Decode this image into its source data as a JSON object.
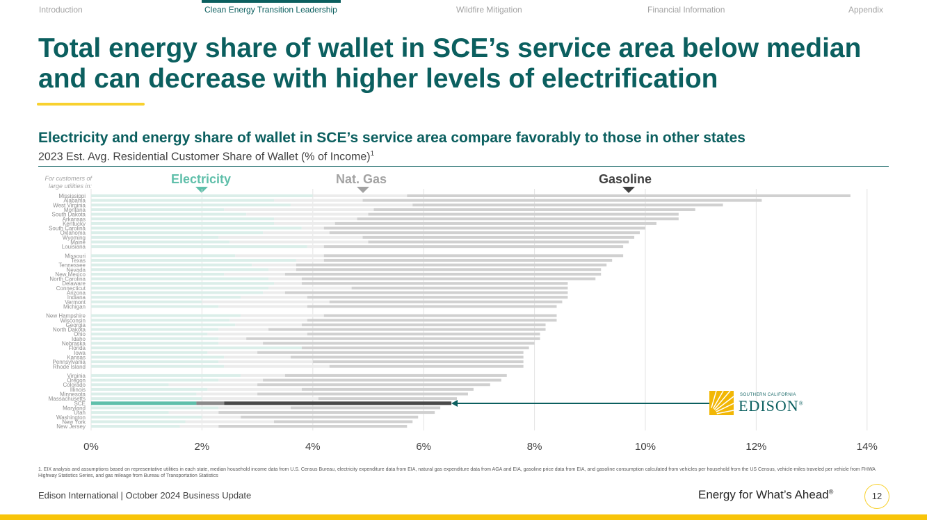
{
  "nav": {
    "items": [
      {
        "label": "Introduction",
        "active": false
      },
      {
        "label": "Clean Energy Transition Leadership",
        "active": true
      },
      {
        "label": "Wildfire Mitigation",
        "active": false
      },
      {
        "label": "Financial Information",
        "active": false
      },
      {
        "label": "Appendix",
        "active": false
      }
    ]
  },
  "title": "Total energy share of wallet in SCE’s service area below median and can decrease with higher levels of electrification",
  "subtitle": "Electricity and energy share of wallet in SCE’s service area compare favorably to those in other states",
  "subsub": "2023 Est. Avg. Residential Customer Share of Wallet (% of Income)",
  "subsub_footnote_ref": "1",
  "customers_note": "For customers of large utilities in:",
  "colors": {
    "accent": "#0b5f5f",
    "yellow": "#f8d12e",
    "electricity": "#dbeee9",
    "gas": "#ececec",
    "gasoline": "#d0d0d0",
    "sce_electricity": "#5fbfaa",
    "sce_gas": "#8a8a8a",
    "sce_gasoline": "#4a4a4a"
  },
  "chart_data": {
    "type": "bar",
    "orientation": "horizontal",
    "stacked": true,
    "title": "2023 Est. Avg. Residential Customer Share of Wallet (% of Income)",
    "xlabel": "",
    "ylabel": "",
    "xlim": [
      0,
      14
    ],
    "xticks": [
      0,
      2,
      4,
      6,
      8,
      10,
      12,
      14
    ],
    "xtick_labels": [
      "0%",
      "2%",
      "4%",
      "6%",
      "8%",
      "10%",
      "12%",
      "14%"
    ],
    "grid": true,
    "category_headers": [
      {
        "name": "Electricity",
        "marker_value": 2.0,
        "color": "#5fbfaa"
      },
      {
        "name": "Nat. Gas",
        "marker_value": 4.9,
        "color": "#a3a3a3"
      },
      {
        "name": "Gasoline",
        "marker_value": 9.7,
        "color": "#404040"
      }
    ],
    "highlight": "SCE",
    "groups": [
      [
        {
          "state": "Mississippi",
          "electricity": 4.0,
          "gas": 1.7,
          "total": 13.7
        },
        {
          "state": "Alabama",
          "electricity": 3.3,
          "gas": 1.6,
          "total": 12.1
        },
        {
          "state": "West Virginia",
          "electricity": 3.6,
          "gas": 2.2,
          "total": 11.4
        },
        {
          "state": "Montana",
          "electricity": 2.4,
          "gas": 2.7,
          "total": 10.9
        },
        {
          "state": "South Dakota",
          "electricity": 2.8,
          "gas": 2.2,
          "total": 10.6
        },
        {
          "state": "Arkansas",
          "electricity": 3.3,
          "gas": 1.5,
          "total": 10.6
        },
        {
          "state": "Kentucky",
          "electricity": 3.3,
          "gas": 1.1,
          "total": 10.2
        },
        {
          "state": "South Carolina",
          "electricity": 3.8,
          "gas": 0.4,
          "total": 10.0
        },
        {
          "state": "Oklahoma",
          "electricity": 3.1,
          "gas": 1.2,
          "total": 9.9
        },
        {
          "state": "Wyoming",
          "electricity": 2.3,
          "gas": 2.6,
          "total": 9.8
        },
        {
          "state": "Maine",
          "electricity": 2.5,
          "gas": 2.5,
          "total": 9.7
        },
        {
          "state": "Louisiana",
          "electricity": 3.9,
          "gas": 0.3,
          "total": 9.6
        }
      ],
      [
        {
          "state": "Missouri",
          "electricity": 2.6,
          "gas": 1.6,
          "total": 9.6
        },
        {
          "state": "Texas",
          "electricity": 3.7,
          "gas": 0.5,
          "total": 9.4
        },
        {
          "state": "Tennessee",
          "electricity": 2.9,
          "gas": 0.8,
          "total": 9.3
        },
        {
          "state": "Nevada",
          "electricity": 3.2,
          "gas": 0.5,
          "total": 9.2
        },
        {
          "state": "New Mexico",
          "electricity": 2.4,
          "gas": 1.1,
          "total": 9.2
        },
        {
          "state": "North Carolina",
          "electricity": 3.2,
          "gas": 0.6,
          "total": 9.1
        },
        {
          "state": "Delaware",
          "electricity": 3.3,
          "gas": 0.5,
          "total": 8.6
        },
        {
          "state": "Connecticut",
          "electricity": 3.2,
          "gas": 1.5,
          "total": 8.6
        },
        {
          "state": "Arizona",
          "electricity": 3.1,
          "gas": 0.4,
          "total": 8.6
        },
        {
          "state": "Indiana",
          "electricity": 2.7,
          "gas": 1.2,
          "total": 8.6
        },
        {
          "state": "Vermont",
          "electricity": 2.0,
          "gas": 2.3,
          "total": 8.5
        },
        {
          "state": "Michigan",
          "electricity": 2.3,
          "gas": 1.6,
          "total": 8.4
        }
      ],
      [
        {
          "state": "New Hampshire",
          "electricity": 2.7,
          "gas": 1.5,
          "total": 8.4
        },
        {
          "state": "Wisconsin",
          "electricity": 2.5,
          "gas": 1.4,
          "total": 8.4
        },
        {
          "state": "Georgia",
          "electricity": 2.6,
          "gas": 1.2,
          "total": 8.2
        },
        {
          "state": "North Dakota",
          "electricity": 2.3,
          "gas": 0.9,
          "total": 8.2
        },
        {
          "state": "Ohio",
          "electricity": 2.1,
          "gas": 1.8,
          "total": 8.1
        },
        {
          "state": "Idaho",
          "electricity": 2.3,
          "gas": 0.5,
          "total": 8.1
        },
        {
          "state": "Nebraska",
          "electricity": 2.3,
          "gas": 0.8,
          "total": 8.0
        },
        {
          "state": "Florida",
          "electricity": 3.8,
          "gas": 0.0,
          "total": 7.9
        },
        {
          "state": "Iowa",
          "electricity": 2.1,
          "gas": 0.9,
          "total": 7.8
        },
        {
          "state": "Kansas",
          "electricity": 2.4,
          "gas": 1.2,
          "total": 7.8
        },
        {
          "state": "Pennsylvania",
          "electricity": 2.3,
          "gas": 1.7,
          "total": 7.8
        },
        {
          "state": "Rhode Island",
          "electricity": 2.4,
          "gas": 1.9,
          "total": 7.8
        }
      ],
      [
        {
          "state": "Virginia",
          "electricity": 2.7,
          "gas": 0.8,
          "total": 7.5
        },
        {
          "state": "Oregon",
          "electricity": 2.3,
          "gas": 0.8,
          "total": 7.4
        },
        {
          "state": "Colorado",
          "electricity": 1.4,
          "gas": 1.6,
          "total": 7.2
        },
        {
          "state": "Illinois",
          "electricity": 2.1,
          "gas": 1.7,
          "total": 6.9
        },
        {
          "state": "Minnesota",
          "electricity": 1.9,
          "gas": 1.1,
          "total": 6.8
        },
        {
          "state": "Massachusetts",
          "electricity": 2.0,
          "gas": 2.1,
          "total": 6.6
        },
        {
          "state": "SCE",
          "electricity": 1.9,
          "gas": 0.5,
          "total": 6.5
        },
        {
          "state": "Maryland",
          "electricity": 2.3,
          "gas": 1.3,
          "total": 6.3
        },
        {
          "state": "Utah",
          "electricity": 1.4,
          "gas": 0.9,
          "total": 6.2
        },
        {
          "state": "Washington",
          "electricity": 2.0,
          "gas": 0.7,
          "total": 5.9
        },
        {
          "state": "New York",
          "electricity": 1.7,
          "gas": 1.6,
          "total": 5.8
        },
        {
          "state": "New Jersey",
          "electricity": 1.6,
          "gas": 0.7,
          "total": 5.7
        }
      ]
    ]
  },
  "logo": {
    "small": "SOUTHERN CALIFORNIA",
    "big": "EDISON",
    "mark": "®"
  },
  "footnote": "1.  EIX analysis and assumptions based on representative utilities in each state, median household income data from U.S. Census Bureau, electricity expenditure data from EIA, natural gas expenditure data from AGA and EIA, gasoline price data from EIA, and gasoline consumption calculated from vehicles per household from the US Census, vehicle-miles traveled per vehicle from FHWA Highway Statistics Series, and gas mileage from Bureau of Transportation Statistics",
  "footer": {
    "left": "Edison International |  October 2024 Business Update",
    "tagline": "Energy for What’s Ahead",
    "tagline_mark": "®",
    "page": "12"
  }
}
